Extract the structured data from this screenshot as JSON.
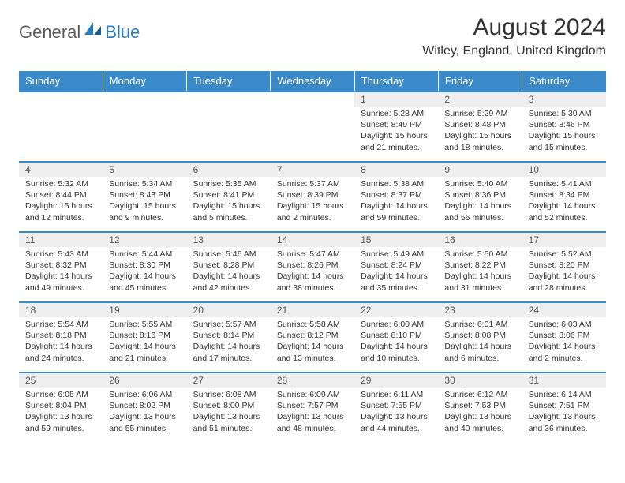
{
  "logo": {
    "text1": "General",
    "text2": "Blue"
  },
  "title": "August 2024",
  "location": "Witley, England, United Kingdom",
  "header_bg": "#3a8ac9",
  "daynum_bg": "#eeeeee",
  "weekdays": [
    "Sunday",
    "Monday",
    "Tuesday",
    "Wednesday",
    "Thursday",
    "Friday",
    "Saturday"
  ],
  "weeks": [
    [
      {
        "n": "",
        "lines": []
      },
      {
        "n": "",
        "lines": []
      },
      {
        "n": "",
        "lines": []
      },
      {
        "n": "",
        "lines": []
      },
      {
        "n": "1",
        "lines": [
          "Sunrise: 5:28 AM",
          "Sunset: 8:49 PM",
          "Daylight: 15 hours and 21 minutes."
        ]
      },
      {
        "n": "2",
        "lines": [
          "Sunrise: 5:29 AM",
          "Sunset: 8:48 PM",
          "Daylight: 15 hours and 18 minutes."
        ]
      },
      {
        "n": "3",
        "lines": [
          "Sunrise: 5:30 AM",
          "Sunset: 8:46 PM",
          "Daylight: 15 hours and 15 minutes."
        ]
      }
    ],
    [
      {
        "n": "4",
        "lines": [
          "Sunrise: 5:32 AM",
          "Sunset: 8:44 PM",
          "Daylight: 15 hours and 12 minutes."
        ]
      },
      {
        "n": "5",
        "lines": [
          "Sunrise: 5:34 AM",
          "Sunset: 8:43 PM",
          "Daylight: 15 hours and 9 minutes."
        ]
      },
      {
        "n": "6",
        "lines": [
          "Sunrise: 5:35 AM",
          "Sunset: 8:41 PM",
          "Daylight: 15 hours and 5 minutes."
        ]
      },
      {
        "n": "7",
        "lines": [
          "Sunrise: 5:37 AM",
          "Sunset: 8:39 PM",
          "Daylight: 15 hours and 2 minutes."
        ]
      },
      {
        "n": "8",
        "lines": [
          "Sunrise: 5:38 AM",
          "Sunset: 8:37 PM",
          "Daylight: 14 hours and 59 minutes."
        ]
      },
      {
        "n": "9",
        "lines": [
          "Sunrise: 5:40 AM",
          "Sunset: 8:36 PM",
          "Daylight: 14 hours and 56 minutes."
        ]
      },
      {
        "n": "10",
        "lines": [
          "Sunrise: 5:41 AM",
          "Sunset: 8:34 PM",
          "Daylight: 14 hours and 52 minutes."
        ]
      }
    ],
    [
      {
        "n": "11",
        "lines": [
          "Sunrise: 5:43 AM",
          "Sunset: 8:32 PM",
          "Daylight: 14 hours and 49 minutes."
        ]
      },
      {
        "n": "12",
        "lines": [
          "Sunrise: 5:44 AM",
          "Sunset: 8:30 PM",
          "Daylight: 14 hours and 45 minutes."
        ]
      },
      {
        "n": "13",
        "lines": [
          "Sunrise: 5:46 AM",
          "Sunset: 8:28 PM",
          "Daylight: 14 hours and 42 minutes."
        ]
      },
      {
        "n": "14",
        "lines": [
          "Sunrise: 5:47 AM",
          "Sunset: 8:26 PM",
          "Daylight: 14 hours and 38 minutes."
        ]
      },
      {
        "n": "15",
        "lines": [
          "Sunrise: 5:49 AM",
          "Sunset: 8:24 PM",
          "Daylight: 14 hours and 35 minutes."
        ]
      },
      {
        "n": "16",
        "lines": [
          "Sunrise: 5:50 AM",
          "Sunset: 8:22 PM",
          "Daylight: 14 hours and 31 minutes."
        ]
      },
      {
        "n": "17",
        "lines": [
          "Sunrise: 5:52 AM",
          "Sunset: 8:20 PM",
          "Daylight: 14 hours and 28 minutes."
        ]
      }
    ],
    [
      {
        "n": "18",
        "lines": [
          "Sunrise: 5:54 AM",
          "Sunset: 8:18 PM",
          "Daylight: 14 hours and 24 minutes."
        ]
      },
      {
        "n": "19",
        "lines": [
          "Sunrise: 5:55 AM",
          "Sunset: 8:16 PM",
          "Daylight: 14 hours and 21 minutes."
        ]
      },
      {
        "n": "20",
        "lines": [
          "Sunrise: 5:57 AM",
          "Sunset: 8:14 PM",
          "Daylight: 14 hours and 17 minutes."
        ]
      },
      {
        "n": "21",
        "lines": [
          "Sunrise: 5:58 AM",
          "Sunset: 8:12 PM",
          "Daylight: 14 hours and 13 minutes."
        ]
      },
      {
        "n": "22",
        "lines": [
          "Sunrise: 6:00 AM",
          "Sunset: 8:10 PM",
          "Daylight: 14 hours and 10 minutes."
        ]
      },
      {
        "n": "23",
        "lines": [
          "Sunrise: 6:01 AM",
          "Sunset: 8:08 PM",
          "Daylight: 14 hours and 6 minutes."
        ]
      },
      {
        "n": "24",
        "lines": [
          "Sunrise: 6:03 AM",
          "Sunset: 8:06 PM",
          "Daylight: 14 hours and 2 minutes."
        ]
      }
    ],
    [
      {
        "n": "25",
        "lines": [
          "Sunrise: 6:05 AM",
          "Sunset: 8:04 PM",
          "Daylight: 13 hours and 59 minutes."
        ]
      },
      {
        "n": "26",
        "lines": [
          "Sunrise: 6:06 AM",
          "Sunset: 8:02 PM",
          "Daylight: 13 hours and 55 minutes."
        ]
      },
      {
        "n": "27",
        "lines": [
          "Sunrise: 6:08 AM",
          "Sunset: 8:00 PM",
          "Daylight: 13 hours and 51 minutes."
        ]
      },
      {
        "n": "28",
        "lines": [
          "Sunrise: 6:09 AM",
          "Sunset: 7:57 PM",
          "Daylight: 13 hours and 48 minutes."
        ]
      },
      {
        "n": "29",
        "lines": [
          "Sunrise: 6:11 AM",
          "Sunset: 7:55 PM",
          "Daylight: 13 hours and 44 minutes."
        ]
      },
      {
        "n": "30",
        "lines": [
          "Sunrise: 6:12 AM",
          "Sunset: 7:53 PM",
          "Daylight: 13 hours and 40 minutes."
        ]
      },
      {
        "n": "31",
        "lines": [
          "Sunrise: 6:14 AM",
          "Sunset: 7:51 PM",
          "Daylight: 13 hours and 36 minutes."
        ]
      }
    ]
  ]
}
